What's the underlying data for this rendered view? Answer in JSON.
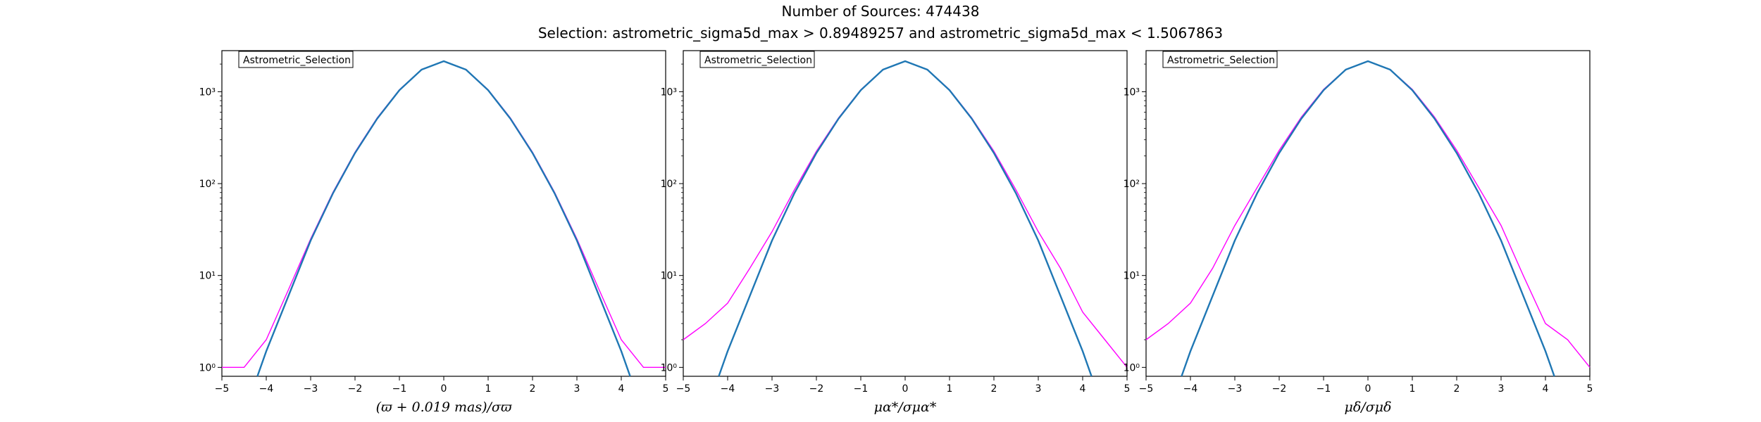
{
  "figure": {
    "title": "Number of Sources: 474438",
    "subtitle": "Selection: astrometric_sigma5d_max > 0.89489257 and astrometric_sigma5d_max < 1.5067863"
  },
  "colors": {
    "histogram": "#ff00ff",
    "fit": "#1f77b4",
    "axes": "#000000"
  },
  "chart_data": [
    {
      "type": "line",
      "xlabel": "(ϖ + 0.019 mas)/σϖ",
      "ylabel": "",
      "legend": [
        "Astrometric_Selection"
      ],
      "legend_placement": "top-left",
      "xlim": [
        -5,
        5
      ],
      "ylim": [
        0.8,
        2800
      ],
      "yscale": "log",
      "x_ticks": [
        "−5",
        "−4",
        "−3",
        "−2",
        "−1",
        "0",
        "1",
        "2",
        "3",
        "4",
        "5"
      ],
      "y_ticks": [
        "10⁰",
        "10¹",
        "10²",
        "10³"
      ],
      "series": [
        {
          "kind": "histogram",
          "x": [
            -5.0,
            -4.5,
            -4.0,
            -3.5,
            -3.0,
            -2.5,
            -2.0,
            -1.5,
            -1.0,
            -0.5,
            0.0,
            0.5,
            1.0,
            1.5,
            2.0,
            2.5,
            3.0,
            3.5,
            4.0,
            4.5,
            5.0
          ],
          "y": [
            1,
            1,
            2,
            7,
            25,
            80,
            220,
            520,
            1050,
            1750,
            2150,
            1750,
            1050,
            520,
            220,
            80,
            25,
            7,
            2,
            1,
            1
          ]
        },
        {
          "kind": "fit",
          "x": [
            -4.2,
            -4.0,
            -3.5,
            -3.0,
            -2.5,
            -2.0,
            -1.5,
            -1.0,
            -0.5,
            0.0,
            0.5,
            1.0,
            1.5,
            2.0,
            2.5,
            3.0,
            3.5,
            4.0,
            4.2
          ],
          "y": [
            0.8,
            1.5,
            6,
            24,
            78,
            215,
            510,
            1040,
            1740,
            2150,
            1740,
            1040,
            510,
            215,
            78,
            24,
            6,
            1.5,
            0.8
          ]
        }
      ]
    },
    {
      "type": "line",
      "xlabel": "μα*/σμα*",
      "ylabel": "",
      "legend": [
        "Astrometric_Selection"
      ],
      "legend_placement": "top-left",
      "xlim": [
        -5,
        5
      ],
      "ylim": [
        0.8,
        2800
      ],
      "yscale": "log",
      "x_ticks": [
        "−5",
        "−4",
        "−3",
        "−2",
        "−1",
        "0",
        "1",
        "2",
        "3",
        "4",
        "5"
      ],
      "y_ticks": [
        "10⁰",
        "10¹",
        "10²",
        "10³"
      ],
      "series": [
        {
          "kind": "histogram",
          "x": [
            -5.0,
            -4.5,
            -4.0,
            -3.5,
            -3.0,
            -2.5,
            -2.0,
            -1.5,
            -1.0,
            -0.5,
            0.0,
            0.5,
            1.0,
            1.5,
            2.0,
            2.5,
            3.0,
            3.5,
            4.0,
            4.5,
            5.0
          ],
          "y": [
            2,
            3,
            5,
            12,
            30,
            85,
            225,
            520,
            1050,
            1750,
            2150,
            1750,
            1050,
            520,
            225,
            85,
            30,
            12,
            4,
            2,
            1
          ]
        },
        {
          "kind": "fit",
          "x": [
            -4.2,
            -4.0,
            -3.5,
            -3.0,
            -2.5,
            -2.0,
            -1.5,
            -1.0,
            -0.5,
            0.0,
            0.5,
            1.0,
            1.5,
            2.0,
            2.5,
            3.0,
            3.5,
            4.0,
            4.2
          ],
          "y": [
            0.8,
            1.5,
            6,
            24,
            78,
            215,
            510,
            1040,
            1740,
            2150,
            1740,
            1040,
            510,
            215,
            78,
            24,
            6,
            1.5,
            0.8
          ]
        }
      ]
    },
    {
      "type": "line",
      "xlabel": "μδ/σμδ",
      "ylabel": "",
      "legend": [
        "Astrometric_Selection"
      ],
      "legend_placement": "top-left",
      "xlim": [
        -5,
        5
      ],
      "ylim": [
        0.8,
        2800
      ],
      "yscale": "log",
      "x_ticks": [
        "−5",
        "−4",
        "−3",
        "−2",
        "−1",
        "0",
        "1",
        "2",
        "3",
        "4",
        "5"
      ],
      "y_ticks": [
        "10⁰",
        "10¹",
        "10²",
        "10³"
      ],
      "series": [
        {
          "kind": "histogram",
          "x": [
            -5.0,
            -4.5,
            -4.0,
            -3.5,
            -3.0,
            -2.5,
            -2.0,
            -1.5,
            -1.0,
            -0.5,
            0.0,
            0.5,
            1.0,
            1.5,
            2.0,
            2.5,
            3.0,
            3.5,
            4.0,
            4.5,
            5.0
          ],
          "y": [
            2,
            3,
            5,
            12,
            35,
            90,
            230,
            530,
            1060,
            1750,
            2150,
            1750,
            1060,
            530,
            230,
            90,
            35,
            10,
            3,
            2,
            1
          ]
        },
        {
          "kind": "fit",
          "x": [
            -4.2,
            -4.0,
            -3.5,
            -3.0,
            -2.5,
            -2.0,
            -1.5,
            -1.0,
            -0.5,
            0.0,
            0.5,
            1.0,
            1.5,
            2.0,
            2.5,
            3.0,
            3.5,
            4.0,
            4.2
          ],
          "y": [
            0.8,
            1.5,
            6,
            24,
            78,
            215,
            510,
            1040,
            1740,
            2150,
            1740,
            1040,
            510,
            215,
            78,
            24,
            6,
            1.5,
            0.8
          ]
        }
      ]
    }
  ]
}
